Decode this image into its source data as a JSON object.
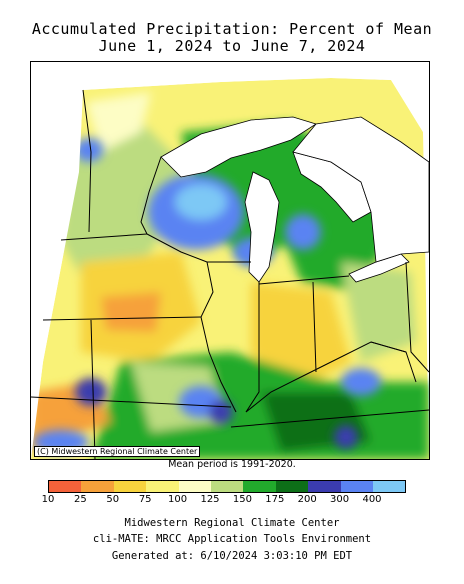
{
  "title": {
    "line1": "Accumulated Precipitation: Percent of Mean",
    "line2": "June 1, 2024 to June 7, 2024"
  },
  "map": {
    "copyright": "(C) Midwestern Regional Climate Center",
    "period_note": "Mean period is 1991-2020."
  },
  "legend": {
    "ticks": [
      "10",
      "25",
      "50",
      "75",
      "100",
      "125",
      "150",
      "175",
      "200",
      "300",
      "400"
    ],
    "colors": [
      "#f4623a",
      "#f6a13a",
      "#f7d33e",
      "#f9f277",
      "#fdfdc5",
      "#bcdc80",
      "#22aa2c",
      "#0d6f18",
      "#3b3caf",
      "#5a83f2",
      "#7dc8f5"
    ]
  },
  "footer": {
    "line1": "Midwestern Regional Climate Center",
    "line2": "cli-MATE: MRCC Application Tools Environment",
    "line3": "Generated at: 6/10/2024 3:03:10 PM EDT"
  }
}
